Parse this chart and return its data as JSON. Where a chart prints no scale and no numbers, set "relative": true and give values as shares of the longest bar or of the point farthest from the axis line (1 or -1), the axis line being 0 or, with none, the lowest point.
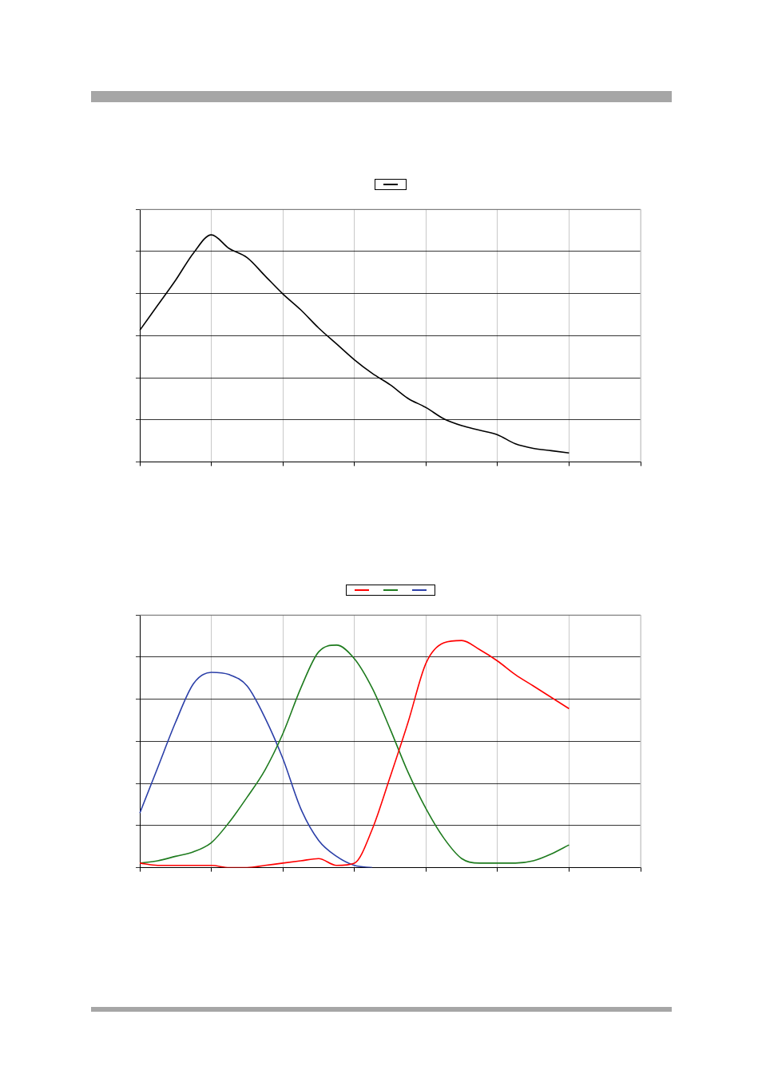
{
  "chart_data": [
    {
      "type": "line",
      "relative": true,
      "grid": true,
      "marker": "none",
      "line_style": "solid",
      "categories": [
        null,
        null,
        null,
        null,
        null,
        null,
        null,
        null,
        null,
        null,
        null,
        null,
        null,
        null,
        null,
        null,
        null,
        null,
        null,
        null,
        null,
        null,
        null,
        null,
        null,
        null,
        null,
        null,
        null
      ],
      "series": [
        {
          "color": "#000000",
          "values": [
            0.58,
            0.69,
            0.8,
            0.92,
            1.0,
            0.94,
            0.9,
            0.82,
            0.74,
            0.67,
            0.59,
            0.52,
            0.45,
            0.39,
            0.34,
            0.28,
            0.24,
            0.19,
            0.16,
            0.14,
            0.12,
            0.08,
            0.06,
            0.05,
            0.04,
            null,
            null,
            null,
            null
          ]
        }
      ]
    },
    {
      "type": "line",
      "relative": true,
      "grid": true,
      "marker": "none",
      "line_style": "solid",
      "categories": [
        null,
        null,
        null,
        null,
        null,
        null,
        null,
        null,
        null,
        null,
        null,
        null,
        null,
        null,
        null,
        null,
        null,
        null,
        null,
        null,
        null,
        null,
        null,
        null,
        null,
        null,
        null,
        null,
        null
      ],
      "series": [
        {
          "color": "#ff0000",
          "values": [
            0.02,
            0.01,
            0.01,
            0.01,
            0.01,
            0.0,
            0.0,
            0.01,
            0.02,
            0.03,
            0.04,
            0.01,
            0.02,
            0.17,
            0.4,
            0.64,
            0.9,
            0.99,
            1.0,
            0.96,
            0.91,
            0.85,
            0.8,
            0.75,
            0.7,
            null,
            null,
            null,
            null
          ]
        },
        {
          "color": "#1e7b1e",
          "values": [
            0.02,
            0.03,
            0.05,
            0.07,
            0.11,
            0.2,
            0.31,
            0.43,
            0.59,
            0.79,
            0.95,
            0.98,
            0.92,
            0.79,
            0.61,
            0.42,
            0.26,
            0.13,
            0.04,
            0.02,
            0.02,
            0.02,
            0.03,
            0.06,
            0.1,
            null,
            null,
            null,
            null
          ]
        },
        {
          "color": "#2b3fa8",
          "values": [
            0.24,
            0.44,
            0.64,
            0.81,
            0.86,
            0.85,
            0.8,
            0.66,
            0.48,
            0.26,
            0.12,
            0.05,
            0.01,
            0.0,
            null,
            null,
            null,
            null,
            null,
            null,
            null,
            null,
            null,
            null,
            null,
            null,
            null,
            null,
            null
          ]
        }
      ]
    }
  ]
}
